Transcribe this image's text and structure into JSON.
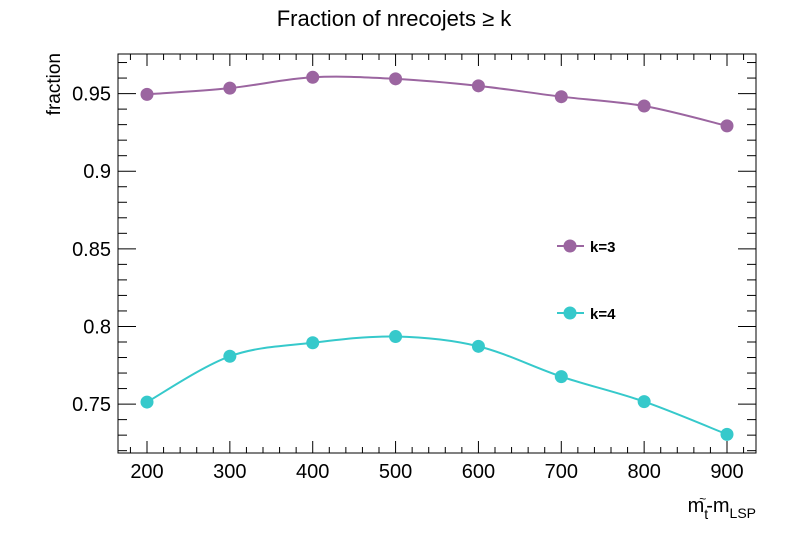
{
  "chart_data": {
    "type": "line",
    "title": "Fraction of nrecojets ≥ k",
    "ylabel": "fraction",
    "xlabel": {
      "main": "m",
      "sub1": "t",
      "sup1": "~",
      "dash": "-m",
      "sub2": "LSP"
    },
    "x": [
      200,
      300,
      400,
      500,
      600,
      700,
      800,
      900
    ],
    "xlim": [
      165,
      935
    ],
    "ylim": [
      0.7185,
      0.9755
    ],
    "xticks": [
      200,
      300,
      400,
      500,
      600,
      700,
      800,
      900
    ],
    "yticks": [
      0.75,
      0.8,
      0.85,
      0.9,
      0.95
    ],
    "ytick_labels": [
      "0.75",
      "0.8",
      "0.85",
      "0.9",
      "0.95"
    ],
    "grid": false,
    "legend_position": "right-center",
    "series": [
      {
        "name": "k=3",
        "color": "#9b65a0",
        "values": [
          0.9495,
          0.9535,
          0.9605,
          0.9595,
          0.955,
          0.948,
          0.942,
          0.9292
        ]
      },
      {
        "name": "k=4",
        "color": "#36c9cb",
        "values": [
          0.7513,
          0.7808,
          0.7895,
          0.7935,
          0.7872,
          0.7677,
          0.7516,
          0.7305
        ]
      }
    ]
  }
}
